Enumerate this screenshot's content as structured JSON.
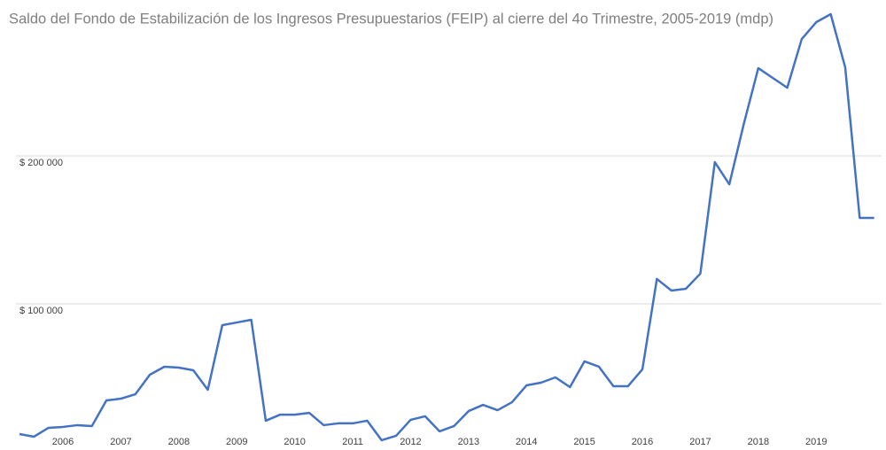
{
  "chart_data": {
    "type": "line",
    "title": "Saldo del Fondo de Estabilización de los Ingresos Presupuestarios (FEIP) al cierre del 4o Trimestre, 2005-2019 (mdp)",
    "categories": [
      null,
      null,
      null,
      "2006",
      null,
      null,
      null,
      "2007",
      null,
      null,
      null,
      "2008",
      null,
      null,
      null,
      "2009",
      null,
      null,
      null,
      "2010",
      null,
      null,
      null,
      "2011",
      null,
      null,
      null,
      "2012",
      null,
      null,
      null,
      "2013",
      null,
      null,
      null,
      "2014",
      null,
      null,
      null,
      "2015",
      null,
      null,
      null,
      "2016",
      null,
      null,
      null,
      "2017",
      null,
      null,
      null,
      "2018",
      null,
      null,
      null,
      "2019",
      null,
      null,
      null,
      null
    ],
    "series": [
      {
        "name": "FEIP",
        "color": "#4472c4",
        "values": [
          12000,
          10200,
          16200,
          16800,
          18000,
          17400,
          34700,
          35900,
          38900,
          52100,
          57500,
          56900,
          55100,
          41900,
          85600,
          87400,
          89200,
          21000,
          25100,
          25100,
          26300,
          18000,
          19200,
          19200,
          21000,
          7800,
          10800,
          21600,
          24000,
          13800,
          17400,
          27500,
          31700,
          28100,
          33500,
          44900,
          46700,
          50300,
          43700,
          61100,
          57500,
          44300,
          44300,
          55700,
          116800,
          109000,
          110200,
          120400,
          195800,
          180800,
          221600,
          259300,
          252700,
          246100,
          279000,
          290400,
          295800,
          259900,
          158100,
          158100
        ]
      }
    ],
    "ylim": [
      0,
      300000
    ],
    "yticks": [
      {
        "value": 100000,
        "label": "$ 100 000"
      },
      {
        "value": 200000,
        "label": "$ 200 000"
      }
    ],
    "grid": true
  }
}
